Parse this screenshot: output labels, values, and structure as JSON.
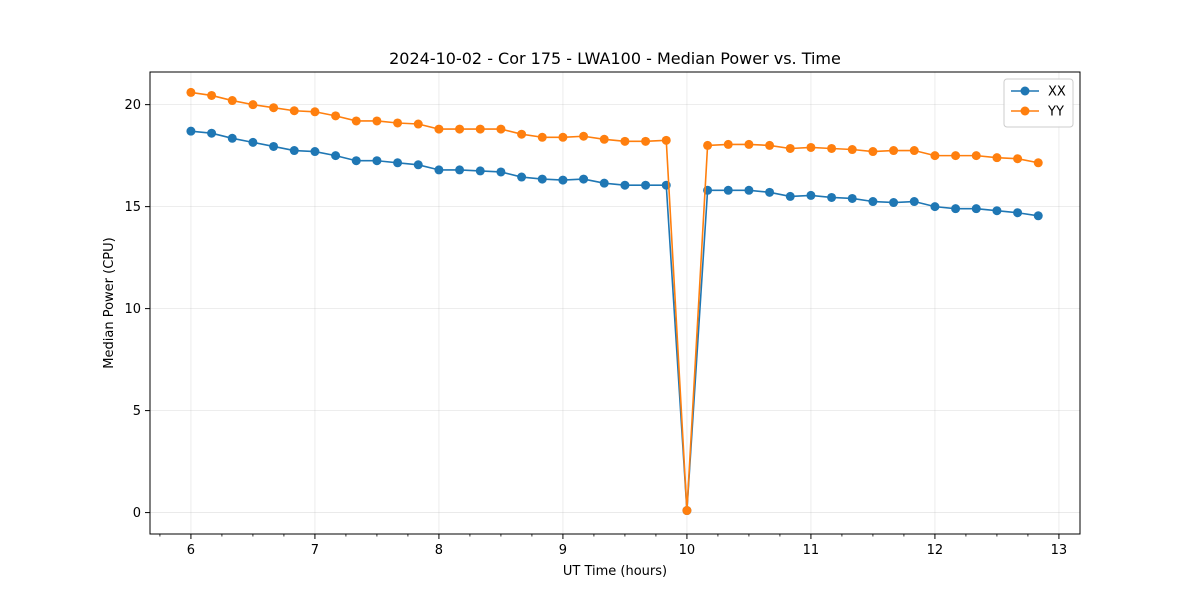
{
  "chart_data": {
    "type": "line",
    "title": "2024-10-02 - Cor 175 - LWA100 - Median Power vs. Time",
    "xlabel": "UT Time (hours)",
    "ylabel": "Median Power (CPU)",
    "xlim": [
      5.67,
      13.17
    ],
    "ylim": [
      -1.05,
      21.6
    ],
    "xticks": [
      6,
      7,
      8,
      9,
      10,
      11,
      12,
      13
    ],
    "yticks": [
      0,
      5,
      10,
      15,
      20
    ],
    "grid": true,
    "legend_position": "top-right",
    "x": [
      6.0,
      6.1667,
      6.3333,
      6.5,
      6.6667,
      6.8333,
      7.0,
      7.1667,
      7.3333,
      7.5,
      7.6667,
      7.8333,
      8.0,
      8.1667,
      8.3333,
      8.5,
      8.6667,
      8.8333,
      9.0,
      9.1667,
      9.3333,
      9.5,
      9.6667,
      9.8333,
      10.0,
      10.1667,
      10.3333,
      10.5,
      10.6667,
      10.8333,
      11.0,
      11.1667,
      11.3333,
      11.5,
      11.6667,
      11.8333,
      12.0,
      12.1667,
      12.3333,
      12.5,
      12.6667,
      12.8333
    ],
    "series": [
      {
        "name": "XX",
        "color": "#1f77b4",
        "values": [
          18.7,
          18.6,
          18.35,
          18.15,
          17.95,
          17.75,
          17.7,
          17.5,
          17.25,
          17.25,
          17.15,
          17.05,
          16.8,
          16.8,
          16.75,
          16.7,
          16.45,
          16.35,
          16.3,
          16.35,
          16.15,
          16.05,
          16.05,
          16.05,
          0.1,
          15.8,
          15.8,
          15.8,
          15.7,
          15.5,
          15.55,
          15.45,
          15.4,
          15.25,
          15.2,
          15.25,
          15.0,
          14.9,
          14.9,
          14.8,
          14.7,
          14.55
        ]
      },
      {
        "name": "YY",
        "color": "#ff7f0e",
        "values": [
          20.6,
          20.45,
          20.2,
          20.0,
          19.85,
          19.7,
          19.65,
          19.45,
          19.2,
          19.2,
          19.1,
          19.05,
          18.8,
          18.8,
          18.8,
          18.8,
          18.55,
          18.4,
          18.4,
          18.45,
          18.3,
          18.2,
          18.2,
          18.25,
          0.1,
          18.0,
          18.05,
          18.05,
          18.0,
          17.85,
          17.9,
          17.85,
          17.8,
          17.7,
          17.75,
          17.75,
          17.5,
          17.5,
          17.5,
          17.4,
          17.35,
          17.15
        ]
      }
    ]
  }
}
